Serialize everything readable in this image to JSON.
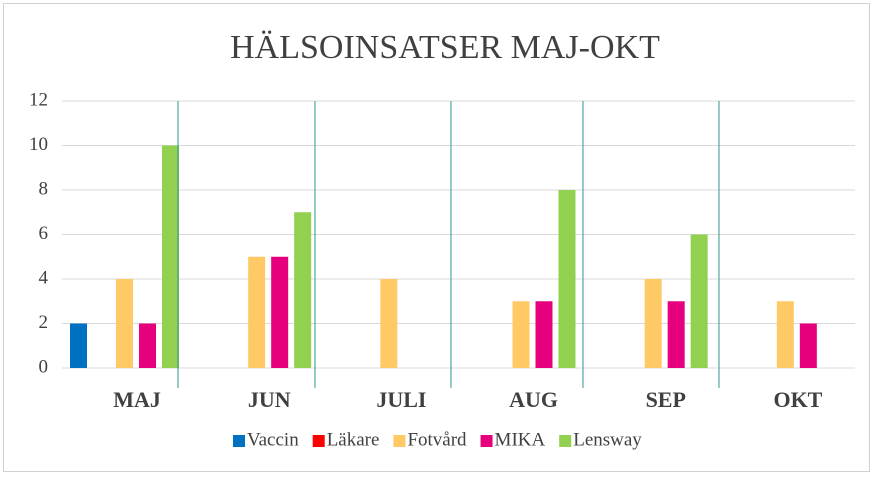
{
  "chart_data": {
    "type": "bar",
    "title": "HÄLSOINSATSER MAJ-OKT",
    "categories": [
      "MAJ",
      "JUN",
      "JULI",
      "AUG",
      "SEP",
      "OKT"
    ],
    "series": [
      {
        "name": "Vaccin",
        "color": "#0070c0",
        "values": [
          2,
          0,
          0,
          0,
          0,
          0
        ]
      },
      {
        "name": "Läkare",
        "color": "#ff0000",
        "values": [
          0,
          0,
          0,
          0,
          0,
          0
        ]
      },
      {
        "name": "Fotvård",
        "color": "#ffc966",
        "values": [
          4,
          5,
          4,
          3,
          4,
          3
        ]
      },
      {
        "name": "MIKA",
        "color": "#e6007e",
        "values": [
          2,
          5,
          0,
          3,
          3,
          2
        ]
      },
      {
        "name": "Lensway",
        "color": "#92d050",
        "values": [
          10,
          7,
          0,
          8,
          6,
          0
        ]
      }
    ],
    "ylim": [
      0,
      12
    ],
    "yticks": [
      0,
      2,
      4,
      6,
      8,
      10,
      12
    ],
    "grid": true,
    "legend": "bottom"
  }
}
